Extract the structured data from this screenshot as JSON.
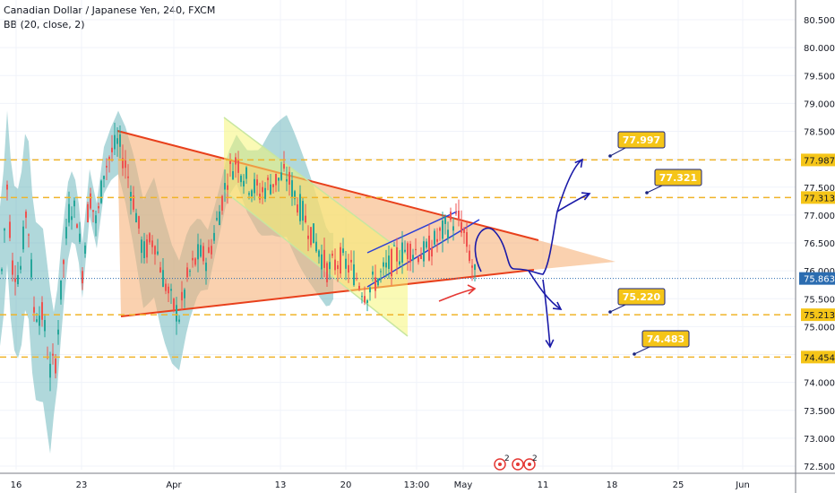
{
  "header": {
    "symbol_title": "Canadian Dollar / Japanese Yen, 240, FXCM",
    "indicator": "BB (20, close, 2)"
  },
  "colors": {
    "candle_up": "#26a69a",
    "candle_down": "#ef5350",
    "band_fill": "#4fa8b0",
    "triangle_fill": "#f7b27a",
    "triangle_line": "#e8401c",
    "channel_fill": "#f5f56b",
    "channel_line": "#c8e6a0",
    "level_line": "#f0b429",
    "label_fill": "#f5c518",
    "label_border": "#1a237e",
    "arrow": "#1a1aa8",
    "price_badge": "#2b6cb0"
  },
  "chart_data": {
    "type": "candlestick",
    "symbol": "CADJPY",
    "timeframe": "240",
    "y_axis": {
      "range": [
        72.3,
        80.7
      ],
      "ticks": [
        "80.500",
        "80.000",
        "79.500",
        "79.000",
        "78.500",
        "78.000",
        "77.500",
        "77.000",
        "76.500",
        "76.000",
        "75.500",
        "75.000",
        "74.500",
        "74.000",
        "73.500",
        "73.000",
        "72.500"
      ]
    },
    "x_axis": {
      "tick_labels": [
        "16",
        "23",
        "Apr",
        "13",
        "20",
        "13:00",
        "May",
        "11",
        "18",
        "25",
        "Jun"
      ]
    },
    "current_price": "75.863",
    "horizontal_levels": [
      {
        "value": 77.987,
        "label": "77.987"
      },
      {
        "value": 77.313,
        "label": "77.313"
      },
      {
        "value": 75.213,
        "label": "75.213"
      },
      {
        "value": 74.454,
        "label": "74.454"
      }
    ],
    "callouts": [
      "77.997",
      "77.321",
      "75.220",
      "74.483"
    ],
    "events": [
      "2",
      "2"
    ]
  }
}
